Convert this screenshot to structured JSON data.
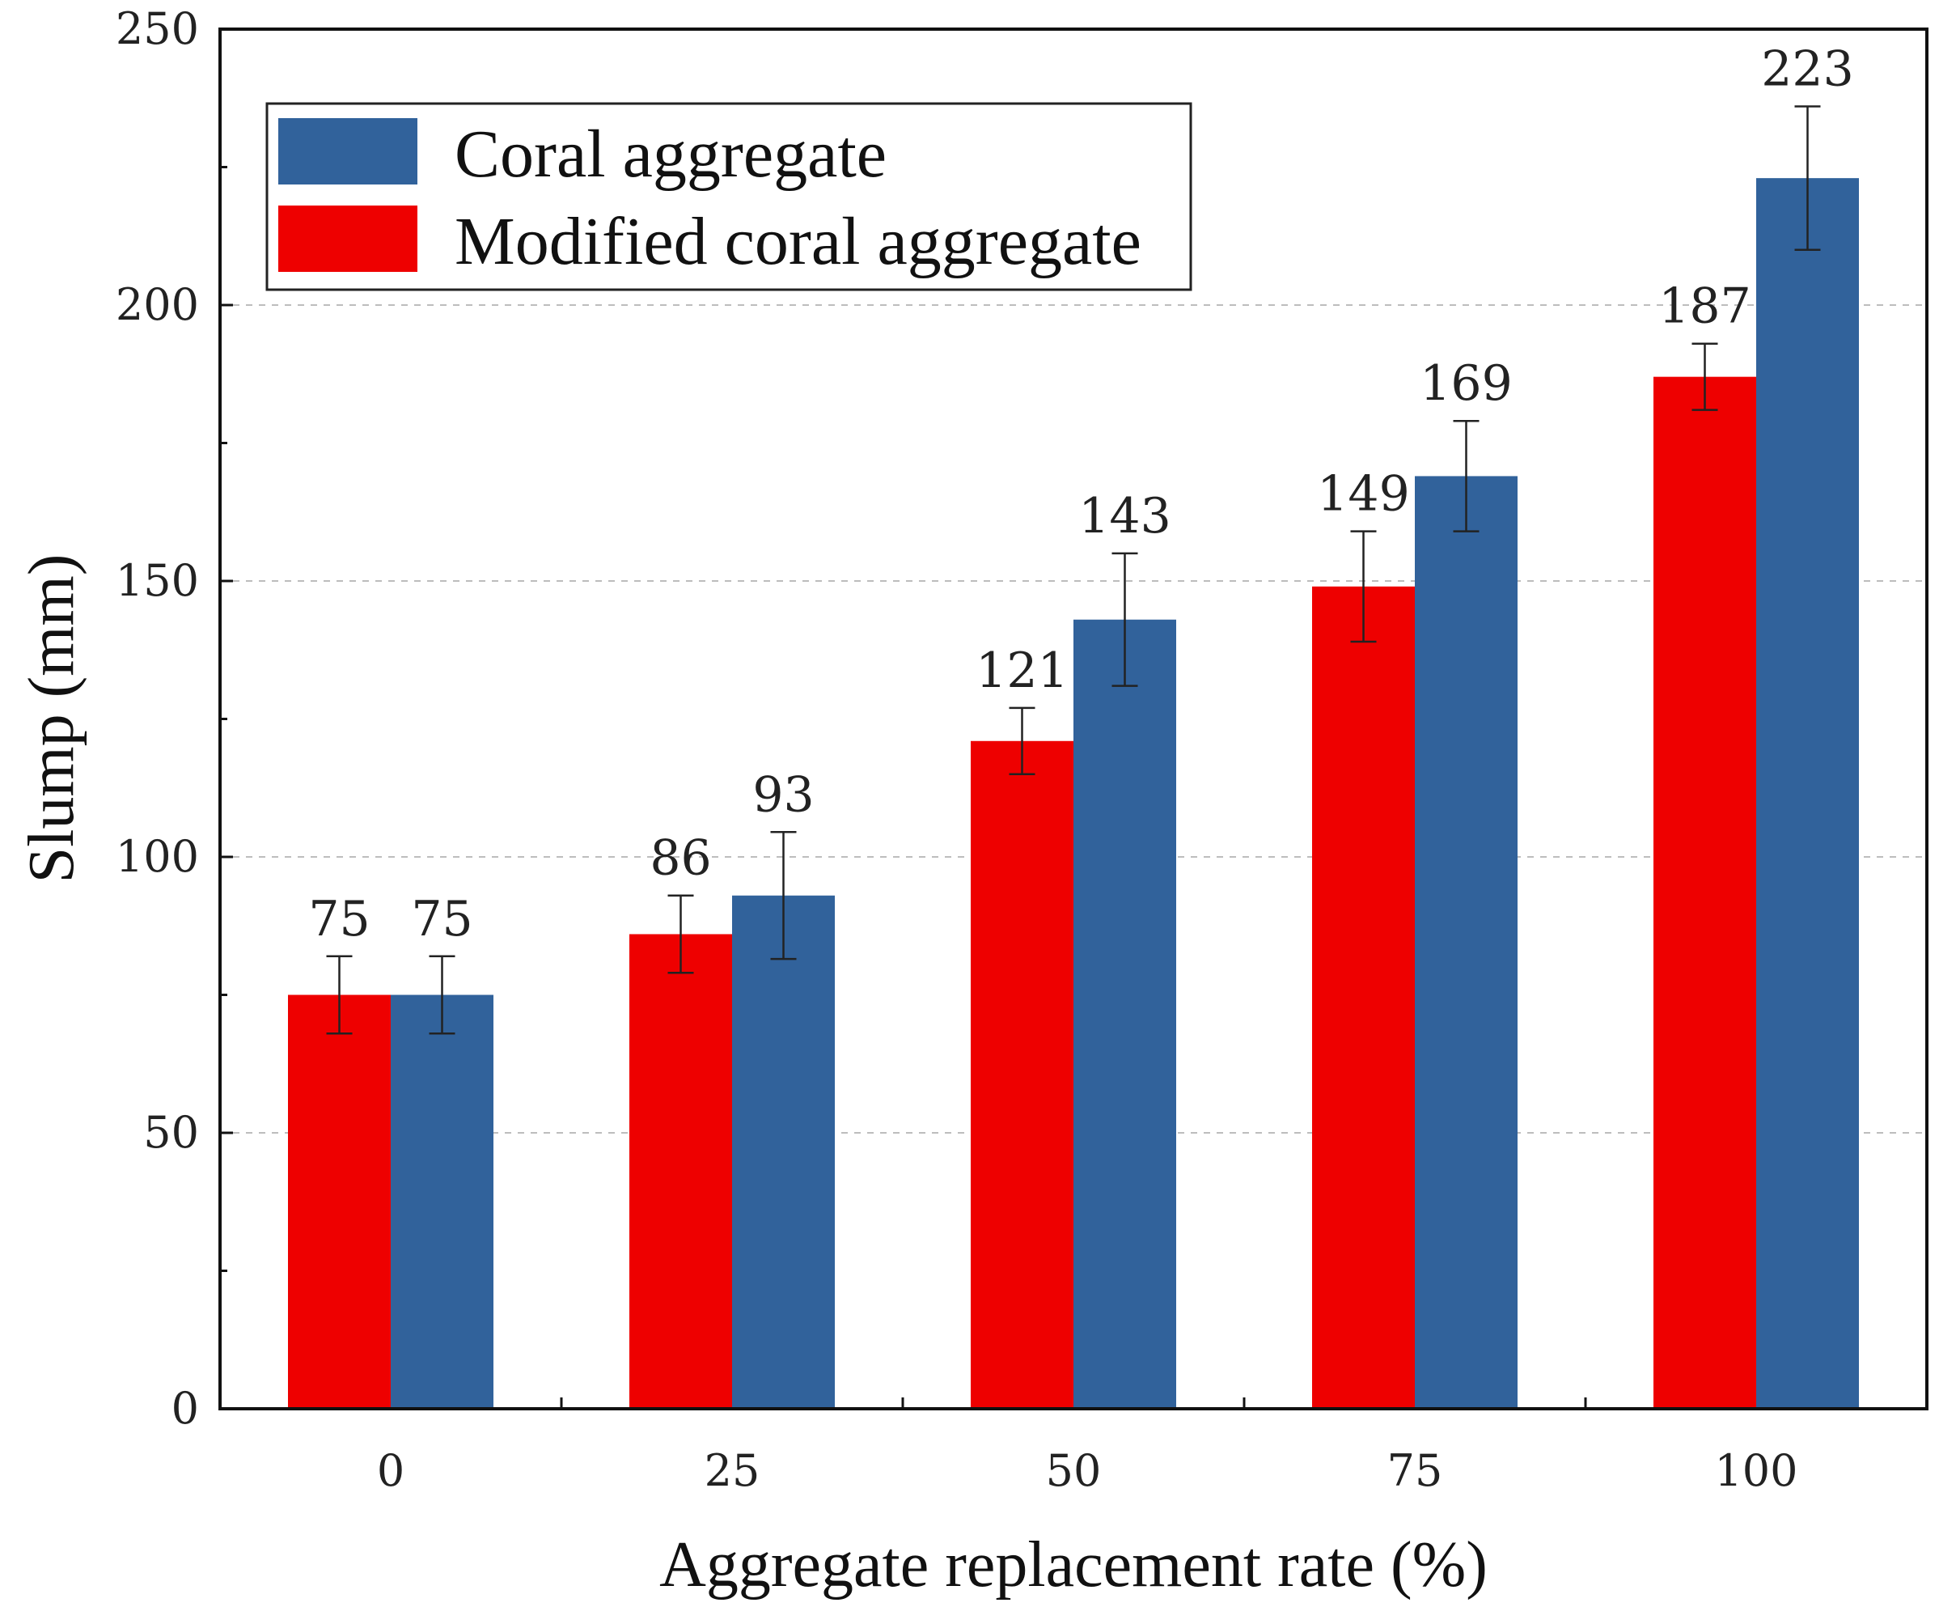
{
  "chart_data": {
    "type": "bar",
    "title": "",
    "xlabel": "Aggregate replacement rate (%)",
    "ylabel": "Slump (mm)",
    "categories": [
      "0",
      "25",
      "50",
      "75",
      "100"
    ],
    "ylim": [
      0,
      250
    ],
    "yticks": [
      0,
      50,
      100,
      150,
      200,
      250
    ],
    "grid": "horizontal dashed",
    "legend_position": "top-left",
    "series": [
      {
        "name": "Modified coral aggregate",
        "color": "#ee0000",
        "values": [
          75,
          86,
          121,
          149,
          187
        ],
        "errors": [
          7,
          7,
          6,
          10,
          6
        ],
        "labels": [
          "75",
          "86",
          "121",
          "149",
          "187"
        ]
      },
      {
        "name": "Coral aggregate",
        "color": "#31629b",
        "values": [
          75,
          93,
          143,
          169,
          223
        ],
        "errors": [
          7,
          11.5,
          12,
          10,
          13
        ],
        "labels": [
          "75",
          "93",
          "143",
          "169",
          "223"
        ]
      }
    ],
    "legend_order": [
      "Coral aggregate",
      "Modified coral aggregate"
    ]
  }
}
